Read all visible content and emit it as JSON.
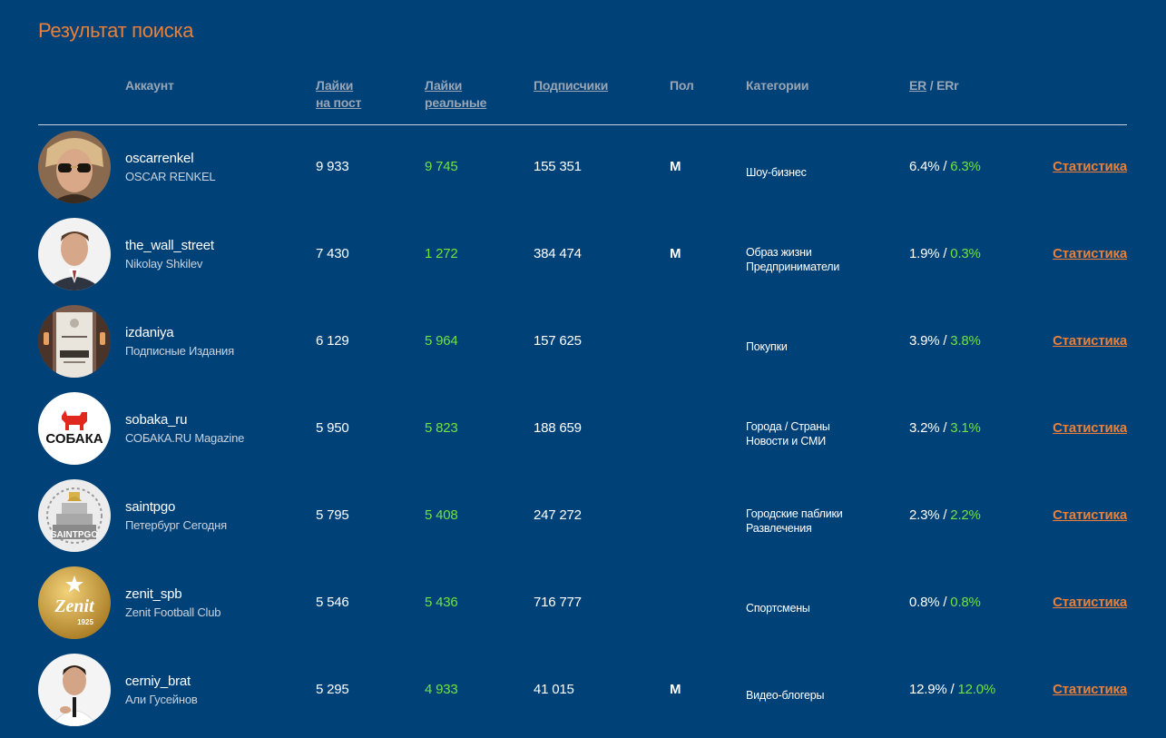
{
  "title": "Результат поиска",
  "header": {
    "account": "Аккаунт",
    "likes_l1": "Лайки",
    "likes_l2": "на пост",
    "real_l1": "Лайки",
    "real_l2": "реальные",
    "subs": "Подписчики",
    "sex": "Пол",
    "cats": "Категории",
    "er": "ER",
    "er_sep": " / ERr"
  },
  "colors": {
    "background": "#004178",
    "accent": "#e8803a",
    "green": "#6ee33f",
    "header_text": "#98a6b6"
  },
  "link_label": "Статистика",
  "rows": [
    {
      "handle": "oscarrenkel",
      "name": "OSCAR RENKEL",
      "likes": "9 933",
      "real": "9 745",
      "subs": "155 351",
      "sex": "M",
      "cats": [
        "Шоу-бизнес"
      ],
      "er": "6.4%",
      "err": "6.3%",
      "avatar": "man-sunglasses-avatar"
    },
    {
      "handle": "the_wall_street",
      "name": "Nikolay Shkilev",
      "likes": "7 430",
      "real": "1 272",
      "subs": "384 474",
      "sex": "M",
      "cats": [
        "Образ жизни",
        "Предприниматели"
      ],
      "er": "1.9%",
      "err": "0.3%",
      "avatar": "man-suit-avatar"
    },
    {
      "handle": "izdaniya",
      "name": "Подписные Издания",
      "likes": "6 129",
      "real": "5 964",
      "subs": "157 625",
      "sex": "",
      "cats": [
        "Покупки"
      ],
      "er": "3.9%",
      "err": "3.8%",
      "avatar": "bookstore-sign-avatar"
    },
    {
      "handle": "sobaka_ru",
      "name": "СОБАКА.RU Magazine",
      "likes": "5 950",
      "real": "5 823",
      "subs": "188 659",
      "sex": "",
      "cats": [
        "Города / Страны",
        "Новости и СМИ"
      ],
      "er": "3.2%",
      "err": "3.1%",
      "avatar": "sobaka-logo-avatar",
      "logo_text": "СОБАКА"
    },
    {
      "handle": "saintpgo",
      "name": "Петербург Сегодня",
      "likes": "5 795",
      "real": "5 408",
      "subs": "247 272",
      "sex": "",
      "cats": [
        "Городские паблики",
        "Развлечения"
      ],
      "er": "2.3%",
      "err": "2.2%",
      "avatar": "saintpgo-logo-avatar",
      "logo_text": "SAINTPGO"
    },
    {
      "handle": "zenit_spb",
      "name": "Zenit Football Club",
      "likes": "5 546",
      "real": "5 436",
      "subs": "716 777",
      "sex": "",
      "cats": [
        "Спортсмены"
      ],
      "er": "0.8%",
      "err": "0.8%",
      "avatar": "zenit-logo-avatar",
      "logo_text": "Zenit",
      "logo_year": "1925"
    },
    {
      "handle": "cerniy_brat",
      "name": "Али Гусейнов",
      "likes": "5 295",
      "real": "4 933",
      "subs": "41 015",
      "sex": "M",
      "cats": [
        "Видео-блогеры"
      ],
      "er": "12.9%",
      "err": "12.0%",
      "avatar": "man-white-shirt-avatar"
    }
  ]
}
